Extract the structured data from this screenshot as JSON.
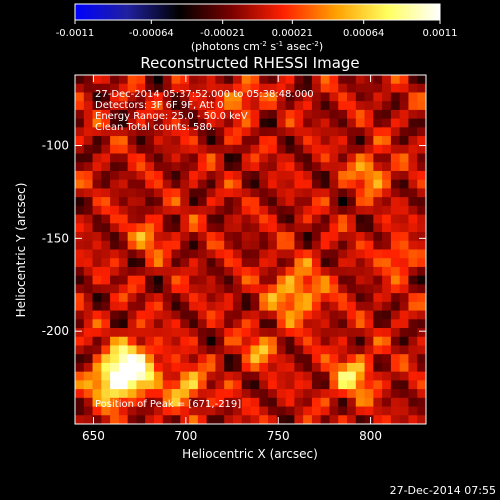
{
  "chart_data": {
    "type": "heatmap",
    "title": "Reconstructed RHESSI Image",
    "xlabel": "Heliocentric X (arcsec)",
    "ylabel": "Heliocentric Y (arcsec)",
    "xlim": [
      640,
      830
    ],
    "ylim": [
      -250,
      -62
    ],
    "x_ticks": [
      "650",
      "700",
      "750",
      "800"
    ],
    "x_tick_values": [
      650,
      700,
      750,
      800
    ],
    "y_ticks": [
      "-100",
      "-150",
      "-200"
    ],
    "y_tick_values": [
      -100,
      -150,
      -200
    ],
    "colorbar": {
      "label_main": "(photons cm",
      "label_sup1": "-2",
      "label_mid1": " s",
      "label_sup2": "-1",
      "label_mid2": " asec",
      "label_sup3": "-2",
      "label_end": ")",
      "range": [
        -0.0011,
        0.0011
      ],
      "tick_labels": [
        "-0.0011",
        "-0.00064",
        "-0.00021",
        "0.00021",
        "0.00064",
        "0.0011"
      ],
      "tick_values": [
        -0.0011,
        -0.00064,
        -0.00021,
        0.00021,
        0.00064,
        0.0011
      ],
      "colormap": [
        "#0000ff",
        "#2020a0",
        "#000000",
        "#7a0000",
        "#ff2000",
        "#ffa000",
        "#ffff60",
        "#ffffff"
      ]
    },
    "annotations": {
      "time_range": "27-Dec-2014 05:37:52.000 to 05:38:48.000",
      "detectors": "Detectors: 3F 6F 9F, Att 0",
      "energy": "Energy Range: 25.0 - 50.0 keV",
      "clean": "Clean    Total counts: 580.",
      "peak": "Position of Peak = [671,-219]"
    },
    "peak": [
      671,
      -219
    ],
    "sources": [
      {
        "x": 671,
        "y": -219,
        "amp": 1.0,
        "r": 9
      },
      {
        "x": 660,
        "y": -228,
        "amp": 0.75,
        "r": 8
      },
      {
        "x": 700,
        "y": -230,
        "amp": 0.6,
        "r": 7
      },
      {
        "x": 760,
        "y": -180,
        "amp": 0.55,
        "r": 10
      },
      {
        "x": 790,
        "y": -225,
        "amp": 0.6,
        "r": 8
      },
      {
        "x": 800,
        "y": -115,
        "amp": 0.5,
        "r": 7
      },
      {
        "x": 730,
        "y": -75,
        "amp": 0.5,
        "r": 6
      },
      {
        "x": 740,
        "y": -210,
        "amp": 0.45,
        "r": 6
      },
      {
        "x": 815,
        "y": -160,
        "amp": 0.45,
        "r": 6
      },
      {
        "x": 680,
        "y": -150,
        "amp": 0.4,
        "r": 6
      }
    ]
  },
  "footer": {
    "timestamp": "27-Dec-2014 07:55"
  }
}
